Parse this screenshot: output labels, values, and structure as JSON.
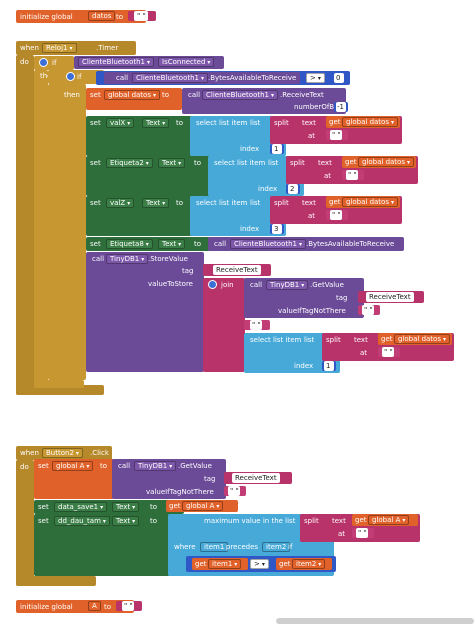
{
  "init1": {
    "label": "initialize global",
    "name": "datos",
    "to": "to",
    "value": "\" \""
  },
  "event1": {
    "when": "when",
    "component": "Reloj1",
    "event": ".Timer",
    "do": "do",
    "if_kw": "if",
    "then_kw": "then",
    "bt_component": "ClienteBluetooth1",
    "bt_prop": "IsConnected",
    "call": "call",
    "bytes_method": ".BytesAvailableToReceive",
    "cmp_op": ">",
    "zero": "0",
    "set_kw": "set",
    "to_kw": "to",
    "global_datos": "global datos",
    "receive_text": ".ReceiveText",
    "number_of_bytes": "numberOfBytes",
    "minus_one": "-1",
    "select_list_item": "select list item",
    "list_kw": "list",
    "index_kw": "index",
    "split_kw": "split",
    "text_kw": "text",
    "at_kw": "at",
    "get_kw": "get",
    "valX": "valX",
    "etiqueta2": "Etiqueta2",
    "valZ": "valZ",
    "etiqueta8": "Etiqueta8",
    "text_prop": "Text",
    "idx1": "1",
    "idx2": "2",
    "idx3": "3",
    "tinydb": "TinyDB1",
    "store_value": ".StoreValue",
    "tag_kw": "tag",
    "value_to_store": "valueToStore",
    "receive_text_str": "ReceiveText",
    "join_kw": "join",
    "get_value": ".GetValue",
    "receive_text_tag": "ReceiveText",
    "value_if_tag_not_there": "valueIfTagNotThere",
    "empty": "\" \""
  },
  "event2": {
    "when": "when",
    "component": "Button2",
    "event": ".Click",
    "do": "do",
    "set_kw": "set",
    "global_a": "global A",
    "to_kw": "to",
    "call": "call",
    "tinydb": "TinyDB1",
    "get_value": ".GetValue",
    "tag_kw": "tag",
    "tag_value": "ReceiveText",
    "value_if_tag_not_there": "valueIfTagNotThere",
    "empty": "\" \"",
    "data_save1": "data_save1",
    "text_prop": "Text",
    "get_kw": "get",
    "dd_dau_tam": "dd_dau_tam",
    "max_value": "maximum value in the list",
    "split_kw": "split",
    "text_kw": "text",
    "at_kw": "at",
    "where_kw": "where",
    "item1": "item1",
    "precedes": "precedes",
    "item2": "item2",
    "if_kw": "if",
    "cmp_op": ">"
  },
  "init2": {
    "label": "initialize global",
    "name": "A",
    "to": "to",
    "value": "\" \""
  },
  "colors": {
    "variable": "#e0622a",
    "control": "#b5882a",
    "component": "#6b4a98",
    "list": "#47a9d8",
    "text": "#b8336a",
    "math": "#2f57c6",
    "setter": "#2e6e3b"
  }
}
